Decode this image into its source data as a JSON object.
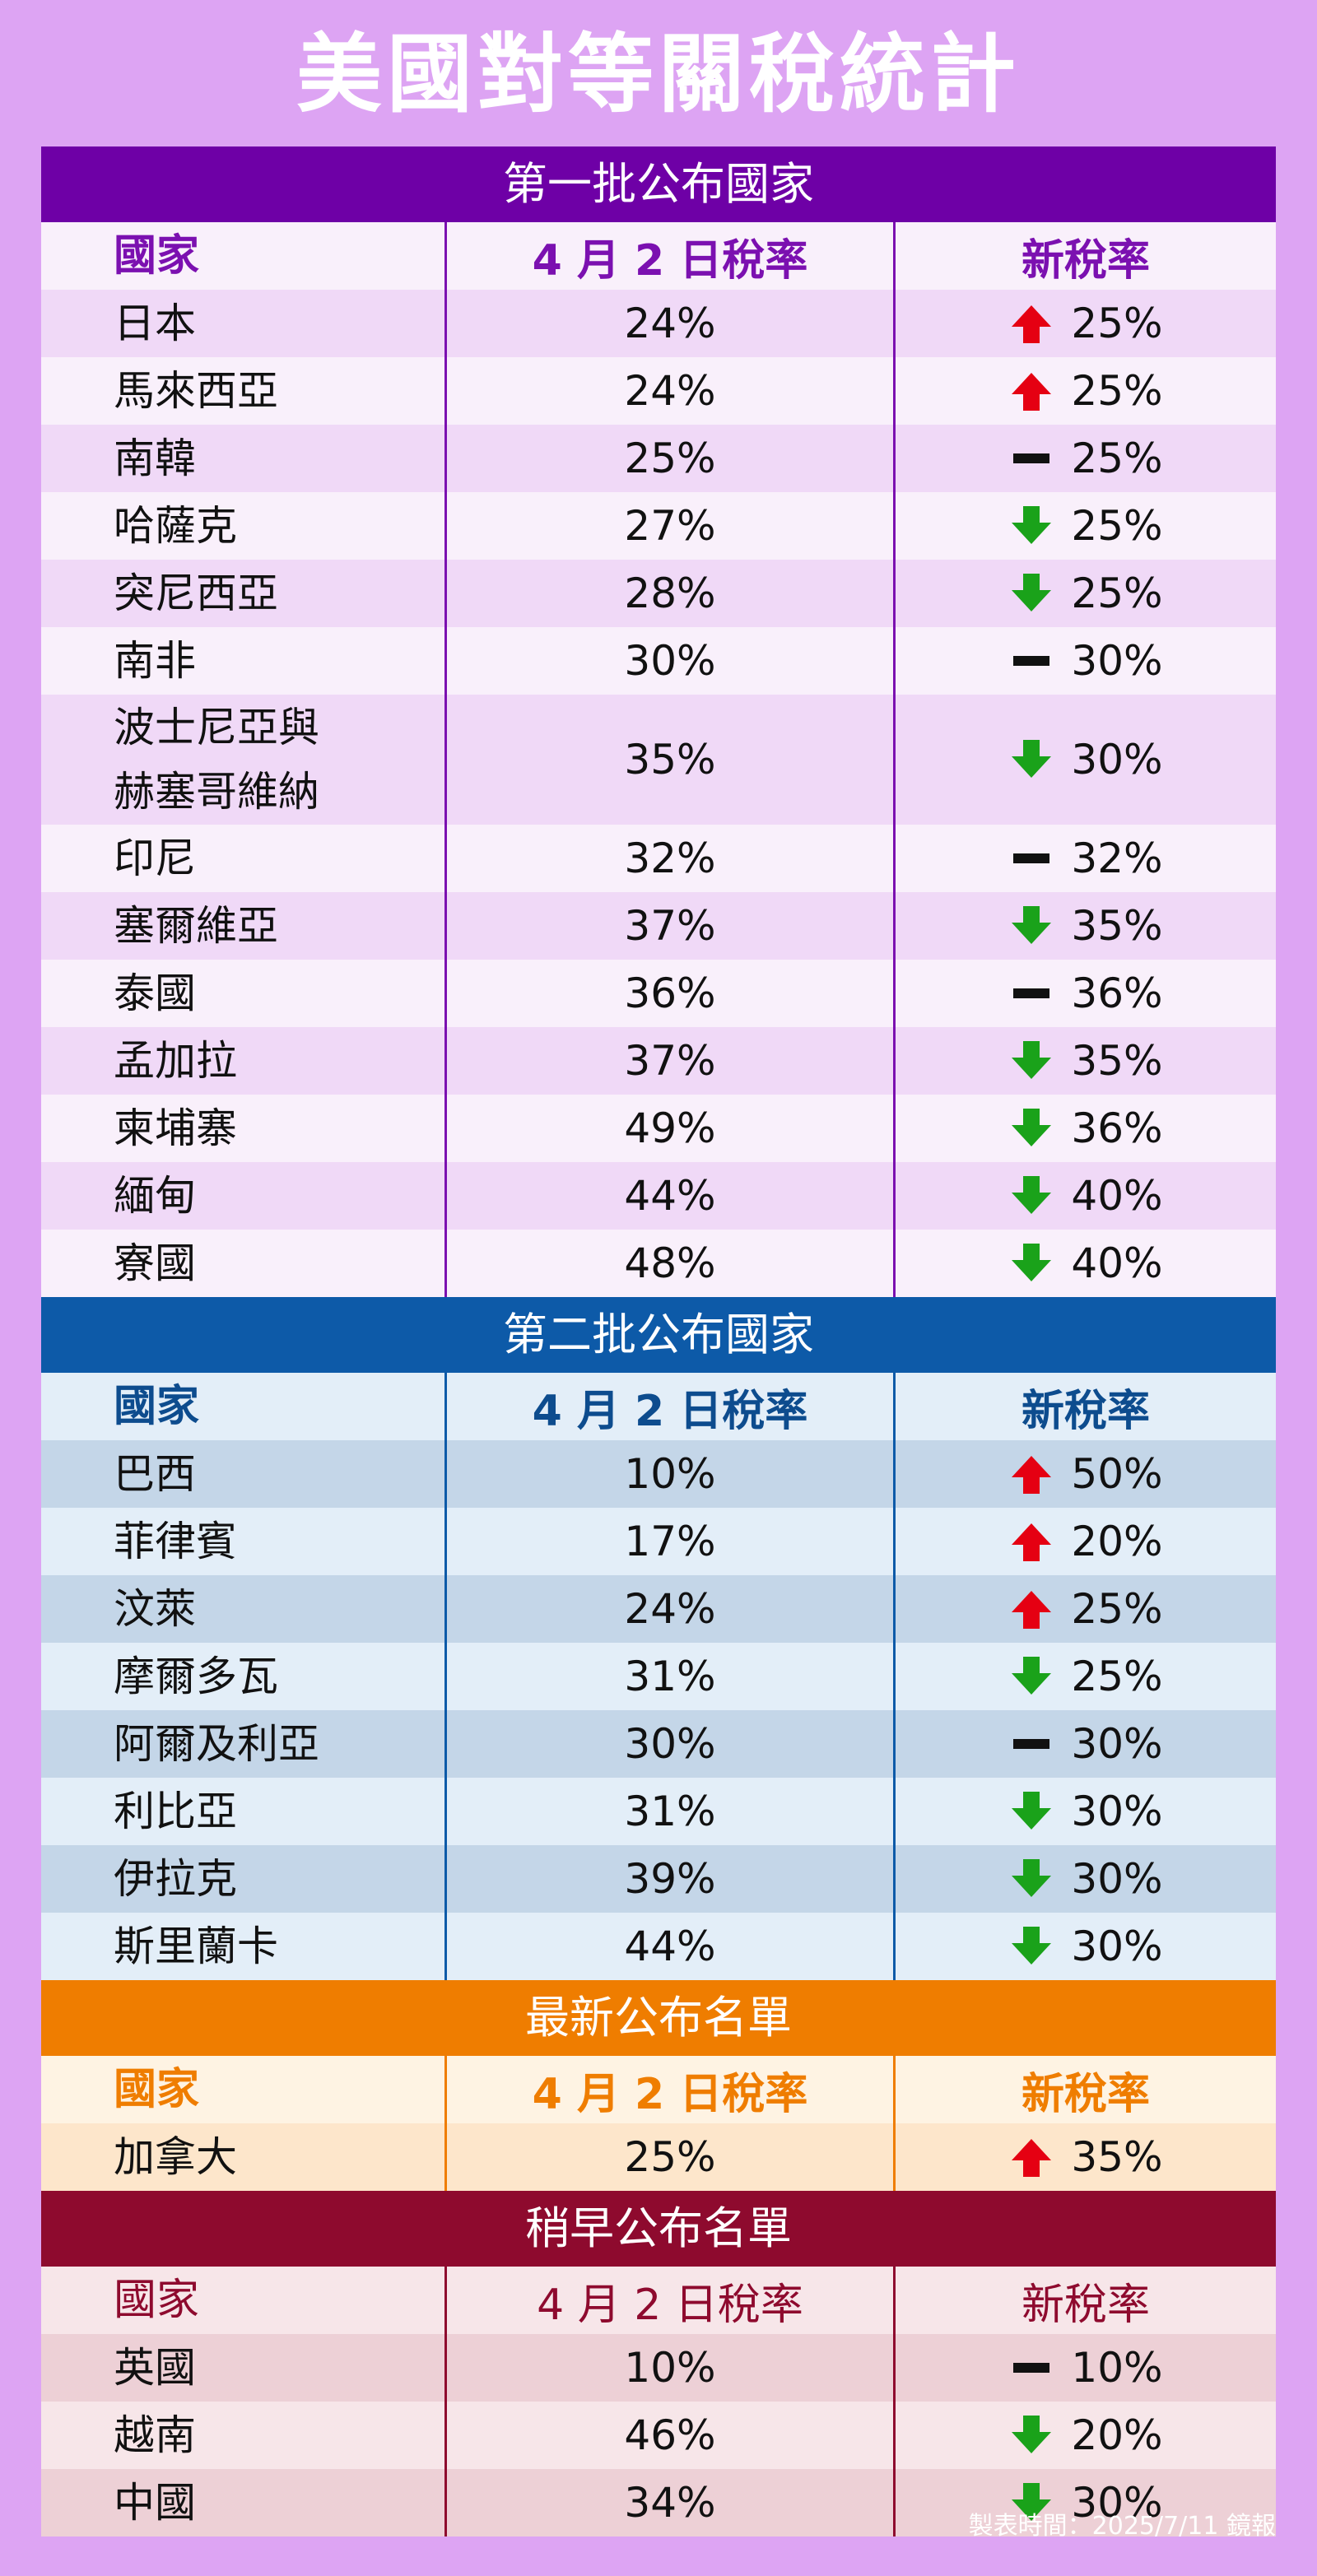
{
  "title": "美國對等關稅統計",
  "footnote": "製表時間：2025/7/11 鏡報",
  "colors": {
    "up": "#e50012",
    "down": "#1aa21a",
    "same": "#111111"
  },
  "sections": [
    {
      "header": "第一批公布國家",
      "theme": {
        "head": "#6e00a6",
        "row_odd": "#f0d9f7",
        "row_even": "#f9f0fb",
        "hdr_bg": "#f9f0fb",
        "hdr_text": "#7b10b0",
        "border": "#7b10b0"
      },
      "col_headers": [
        "國家",
        "4 月 2 日稅率",
        "新稅率"
      ],
      "rows": [
        {
          "country": "日本",
          "april_rate": "24%",
          "trend": "up",
          "new_rate": "25%"
        },
        {
          "country": "馬來西亞",
          "april_rate": "24%",
          "trend": "up",
          "new_rate": "25%"
        },
        {
          "country": "南韓",
          "april_rate": "25%",
          "trend": "same",
          "new_rate": "25%"
        },
        {
          "country": "哈薩克",
          "april_rate": "27%",
          "trend": "down",
          "new_rate": "25%"
        },
        {
          "country": "突尼西亞",
          "april_rate": "28%",
          "trend": "down",
          "new_rate": "25%"
        },
        {
          "country": "南非",
          "april_rate": "30%",
          "trend": "same",
          "new_rate": "30%"
        },
        {
          "country": "波士尼亞與\n赫塞哥維納",
          "april_rate": "35%",
          "trend": "down",
          "new_rate": "30%",
          "tall": true
        },
        {
          "country": "印尼",
          "april_rate": "32%",
          "trend": "same",
          "new_rate": "32%"
        },
        {
          "country": "塞爾維亞",
          "april_rate": "37%",
          "trend": "down",
          "new_rate": "35%"
        },
        {
          "country": "泰國",
          "april_rate": "36%",
          "trend": "same",
          "new_rate": "36%"
        },
        {
          "country": "孟加拉",
          "april_rate": "37%",
          "trend": "down",
          "new_rate": "35%"
        },
        {
          "country": "柬埔寨",
          "april_rate": "49%",
          "trend": "down",
          "new_rate": "36%"
        },
        {
          "country": "緬甸",
          "april_rate": "44%",
          "trend": "down",
          "new_rate": "40%"
        },
        {
          "country": "寮國",
          "april_rate": "48%",
          "trend": "down",
          "new_rate": "40%"
        }
      ]
    },
    {
      "header": "第二批公布國家",
      "theme": {
        "head": "#0d5aa8",
        "row_odd": "#c4d6e8",
        "row_even": "#e3eef8",
        "hdr_bg": "#e3eef8",
        "hdr_text": "#0d4c8e",
        "border": "#0d5aa8"
      },
      "col_headers": [
        "國家",
        "4 月 2 日稅率",
        "新稅率"
      ],
      "rows": [
        {
          "country": "巴西",
          "april_rate": "10%",
          "trend": "up",
          "new_rate": "50%"
        },
        {
          "country": "菲律賓",
          "april_rate": "17%",
          "trend": "up",
          "new_rate": "20%"
        },
        {
          "country": "汶萊",
          "april_rate": "24%",
          "trend": "up",
          "new_rate": "25%"
        },
        {
          "country": "摩爾多瓦",
          "april_rate": "31%",
          "trend": "down",
          "new_rate": "25%"
        },
        {
          "country": "阿爾及利亞",
          "april_rate": "30%",
          "trend": "same",
          "new_rate": "30%"
        },
        {
          "country": "利比亞",
          "april_rate": "31%",
          "trend": "down",
          "new_rate": "30%"
        },
        {
          "country": "伊拉克",
          "april_rate": "39%",
          "trend": "down",
          "new_rate": "30%"
        },
        {
          "country": "斯里蘭卡",
          "april_rate": "44%",
          "trend": "down",
          "new_rate": "30%"
        }
      ]
    },
    {
      "header": "最新公布名單",
      "theme": {
        "head": "#ef7d00",
        "row_odd": "#fde6cb",
        "row_even": "#fef3e3",
        "hdr_bg": "#fef3e3",
        "hdr_text": "#ef7d00",
        "border": "#ef7d00"
      },
      "col_headers": [
        "國家",
        "4 月 2 日稅率",
        "新稅率"
      ],
      "rows": [
        {
          "country": "加拿大",
          "april_rate": "25%",
          "trend": "up",
          "new_rate": "35%"
        }
      ]
    },
    {
      "header": "稍早公布名單",
      "theme": {
        "head": "#8e0a2e",
        "row_odd": "#edd0d6",
        "row_even": "#f7e6e9",
        "hdr_bg": "#f7e6e9",
        "hdr_text": "#8e0a2e",
        "border": "#8e0a2e",
        "hdr_weight": "normal"
      },
      "col_headers": [
        "國家",
        "4 月 2 日稅率",
        "新稅率"
      ],
      "rows": [
        {
          "country": "英國",
          "april_rate": "10%",
          "trend": "same",
          "new_rate": "10%"
        },
        {
          "country": "越南",
          "april_rate": "46%",
          "trend": "down",
          "new_rate": "20%"
        },
        {
          "country": "中國",
          "april_rate": "34%",
          "trend": "down",
          "new_rate": "30%"
        }
      ]
    }
  ]
}
